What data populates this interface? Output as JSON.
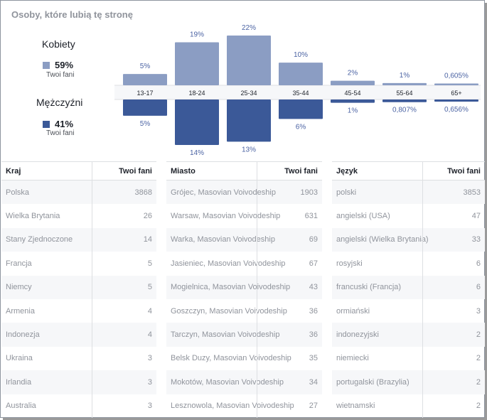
{
  "title": "Osoby, które lubią tę stronę",
  "women": {
    "label": "Kobiety",
    "pct": "59%",
    "sub": "Twoi fani",
    "color": "#8b9dc3"
  },
  "men": {
    "label": "Mężczyźni",
    "pct": "41%",
    "sub": "Twoi fani",
    "color": "#3b5998"
  },
  "chart_data": {
    "type": "bar",
    "categories": [
      "13-17",
      "18-24",
      "25-34",
      "35-44",
      "45-54",
      "55-64",
      "65+"
    ],
    "series": [
      {
        "name": "Kobiety",
        "values": [
          5,
          19,
          22,
          10,
          2,
          1,
          0.605
        ],
        "labels": [
          "5%",
          "19%",
          "22%",
          "10%",
          "2%",
          "1%",
          "0,605%"
        ],
        "color": "#8b9dc3"
      },
      {
        "name": "Mężczyźni",
        "values": [
          5,
          14,
          13,
          6,
          1,
          0.807,
          0.656
        ],
        "labels": [
          "5%",
          "14%",
          "13%",
          "6%",
          "1%",
          "0,807%",
          "0,656%"
        ],
        "color": "#3b5998"
      }
    ],
    "label_color": "#4b63a3"
  },
  "tables": [
    {
      "header_name": "Kraj",
      "header_value": "Twoi fani",
      "rows": [
        {
          "name": "Polska",
          "value": "3868"
        },
        {
          "name": "Wielka Brytania",
          "value": "26"
        },
        {
          "name": "Stany Zjednoczone",
          "value": "14"
        },
        {
          "name": "Francja",
          "value": "5"
        },
        {
          "name": "Niemcy",
          "value": "5"
        },
        {
          "name": "Armenia",
          "value": "4"
        },
        {
          "name": "Indonezja",
          "value": "4"
        },
        {
          "name": "Ukraina",
          "value": "3"
        },
        {
          "name": "Irlandia",
          "value": "3"
        },
        {
          "name": "Australia",
          "value": "3"
        }
      ]
    },
    {
      "header_name": "Miasto",
      "header_value": "Twoi fani",
      "rows": [
        {
          "name": "Grójec, Masovian Voivodeship",
          "value": "1903"
        },
        {
          "name": "Warsaw, Masovian Voivodeship",
          "value": "631"
        },
        {
          "name": "Warka, Masovian Voivodeship",
          "value": "69"
        },
        {
          "name": "Jasieniec, Masovian Voivodeship",
          "value": "67"
        },
        {
          "name": "Mogielnica, Masovian Voivodeship",
          "value": "43"
        },
        {
          "name": "Goszczyn, Masovian Voivodeship",
          "value": "36"
        },
        {
          "name": "Tarczyn, Masovian Voivodeship",
          "value": "36"
        },
        {
          "name": "Belsk Duzy, Masovian Voivodeship",
          "value": "35"
        },
        {
          "name": "Mokotów, Masovian Voivodeship",
          "value": "34"
        },
        {
          "name": "Lesznowola, Masovian Voivodeship",
          "value": "27"
        }
      ]
    },
    {
      "header_name": "Język",
      "header_value": "Twoi fani",
      "rows": [
        {
          "name": "polski",
          "value": "3853"
        },
        {
          "name": "angielski (USA)",
          "value": "47"
        },
        {
          "name": "angielski (Wielka Brytania)",
          "value": "33"
        },
        {
          "name": "rosyjski",
          "value": "6"
        },
        {
          "name": "francuski (Francja)",
          "value": "6"
        },
        {
          "name": "ormiański",
          "value": "3"
        },
        {
          "name": "indonezyjski",
          "value": "2"
        },
        {
          "name": "niemiecki",
          "value": "2"
        },
        {
          "name": "portugalski (Brazylia)",
          "value": "2"
        },
        {
          "name": "wietnamski",
          "value": "2"
        }
      ]
    }
  ]
}
